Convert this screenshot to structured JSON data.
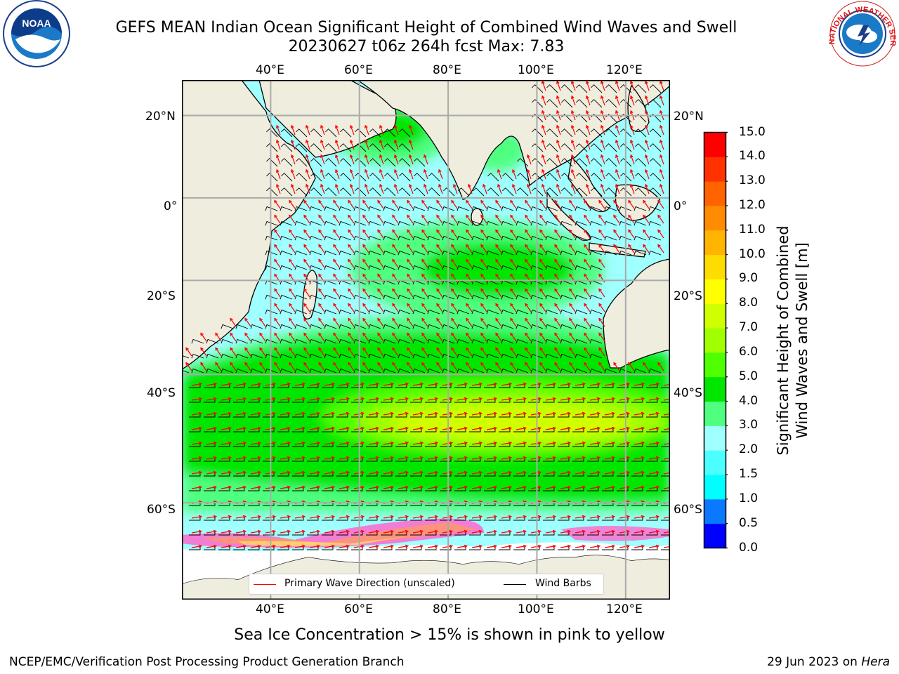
{
  "header": {
    "title_line1": "GEFS MEAN Indian Ocean Significant Height of Combined Wind Waves and Swell",
    "title_line2": "20230627 t06z 264h fcst   Max: 7.83"
  },
  "logos": {
    "left": {
      "name": "noaa-logo",
      "text": "NOAA"
    },
    "right": {
      "name": "national-weather-service-logo",
      "text": "NATIONAL WEATHER SERVICE"
    }
  },
  "map": {
    "lon_labels": [
      "40°E",
      "60°E",
      "80°E",
      "100°E",
      "120°E"
    ],
    "lat_labels": [
      "20°N",
      "0°",
      "20°S",
      "40°S",
      "60°S"
    ],
    "lon_values": [
      40,
      60,
      80,
      100,
      120
    ],
    "lat_values": [
      20,
      0,
      -20,
      -40,
      -60
    ],
    "lon_range": [
      20,
      130
    ],
    "lat_range": [
      -70,
      28
    ],
    "land_color": "#efedde",
    "grid": true
  },
  "colorbar": {
    "label_line1": "Significant Height of Combined",
    "label_line2": "Wind Waves and Swell [m]",
    "ticks": [
      "0.0",
      "0.5",
      "1.0",
      "1.5",
      "2.0",
      "3.0",
      "4.0",
      "5.0",
      "6.0",
      "7.0",
      "8.0",
      "9.0",
      "10.0",
      "11.0",
      "12.0",
      "13.0",
      "14.0",
      "15.0"
    ],
    "colors": [
      "#0000ff",
      "#0a78ff",
      "#00ffff",
      "#4cffff",
      "#a0ffff",
      "#50ff80",
      "#00e600",
      "#50ff00",
      "#a0ff00",
      "#d0ff00",
      "#ffff00",
      "#ffdc00",
      "#ffb400",
      "#ff8c00",
      "#ff6400",
      "#ff3200",
      "#ff0000"
    ]
  },
  "legend": {
    "items": [
      {
        "label": "Primary Wave Direction (unscaled)",
        "color": "#ff0000"
      },
      {
        "label": "Wind Barbs",
        "color": "#000000"
      }
    ]
  },
  "note": "Sea Ice Concentration > 15% is shown in pink to yellow",
  "footer": {
    "left": "NCEP/EMC/Verification Post Processing Product Generation Branch",
    "right_date": "29 Jun 2023 on",
    "right_machine": "Hera"
  }
}
